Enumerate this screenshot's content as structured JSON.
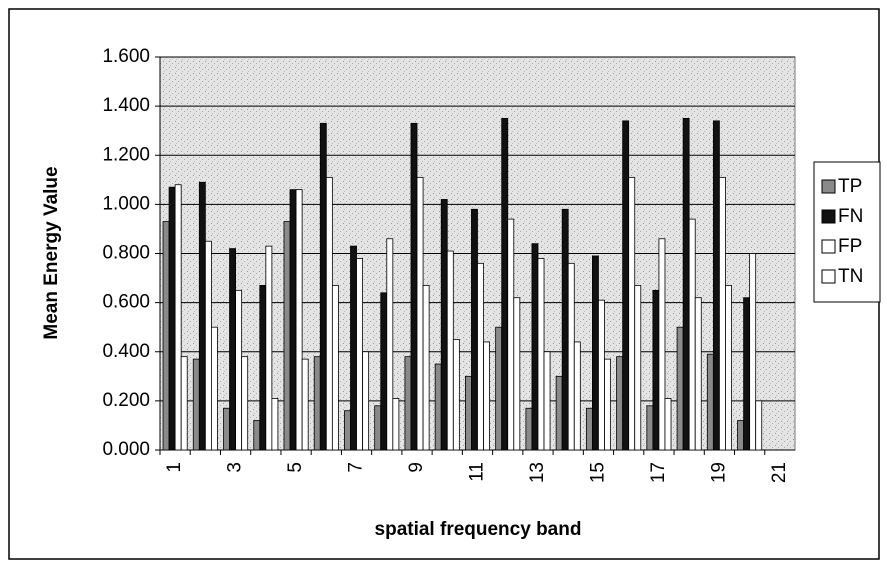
{
  "chart_data": {
    "type": "bar",
    "x_label": "spatial frequency band",
    "y_label": "Mean Energy Value",
    "categories": [
      "1",
      null,
      "3",
      null,
      "5",
      null,
      "7",
      null,
      "9",
      null,
      "11",
      null,
      "13",
      null,
      "15",
      null,
      "17",
      null,
      "19",
      null,
      "21"
    ],
    "series": [
      {
        "name": "TP",
        "color": "#8a8a8a",
        "values": [
          0.93,
          0.37,
          0.17,
          0.12,
          0.93,
          0.38,
          0.16,
          0.18,
          0.38,
          0.35,
          0.3,
          0.5,
          0.17,
          0.3,
          0.17,
          0.38,
          0.18,
          0.5,
          0.39,
          0.12,
          null
        ]
      },
      {
        "name": "FN",
        "color": "#111111",
        "values": [
          1.07,
          1.09,
          0.82,
          0.67,
          1.06,
          1.33,
          0.83,
          0.64,
          1.33,
          1.02,
          0.98,
          1.35,
          0.84,
          0.98,
          0.79,
          1.34,
          0.65,
          1.35,
          1.34,
          0.62,
          null
        ]
      },
      {
        "name": "FP",
        "color": "#ffffff",
        "values": [
          1.08,
          0.85,
          0.65,
          0.83,
          1.06,
          1.11,
          0.78,
          0.86,
          1.11,
          0.81,
          0.76,
          0.94,
          0.78,
          0.76,
          0.61,
          1.11,
          0.86,
          0.94,
          1.11,
          0.8,
          null
        ]
      },
      {
        "name": "TN",
        "color": "#ffffff",
        "values": [
          0.38,
          0.5,
          0.38,
          0.21,
          0.37,
          0.67,
          0.4,
          0.21,
          0.67,
          0.45,
          0.44,
          0.62,
          0.4,
          0.44,
          0.37,
          0.67,
          0.21,
          0.62,
          0.67,
          0.2,
          null
        ]
      }
    ],
    "ylim": [
      0,
      1.6
    ],
    "yticks": [
      {
        "value": 0,
        "label": "0.000"
      },
      {
        "value": 0.2,
        "label": "0.200"
      },
      {
        "value": 0.4,
        "label": "0.400"
      },
      {
        "value": 0.6,
        "label": "0.600"
      },
      {
        "value": 0.8,
        "label": "0.800"
      },
      {
        "value": 1.0,
        "label": "1.000"
      },
      {
        "value": 1.2,
        "label": "1.200"
      },
      {
        "value": 1.4,
        "label": "1.400"
      },
      {
        "value": 1.6,
        "label": "1.600"
      }
    ],
    "grid": true,
    "legend": "right"
  }
}
